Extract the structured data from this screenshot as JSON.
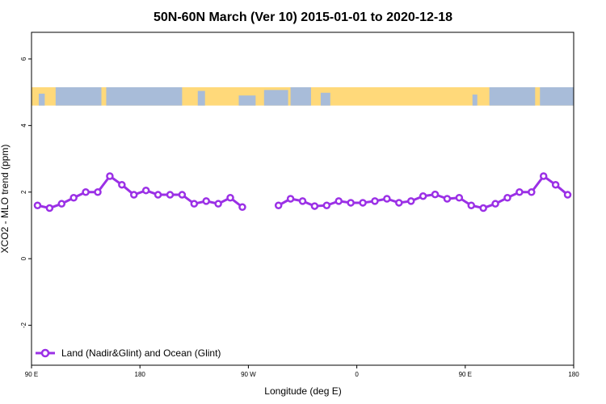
{
  "chart_data": {
    "type": "line",
    "title": "50N-60N March (Ver 10)   2015-01-01 to 2020-12-18",
    "xlabel": "Longitude (deg E)",
    "ylabel": "XCO2 - MLO trend (ppm)",
    "xlim": [
      90,
      540
    ],
    "ylim": [
      -3.2,
      6.8
    ],
    "x_ticks": [
      {
        "value": 90,
        "label": "90 E"
      },
      {
        "value": 180,
        "label": "180"
      },
      {
        "value": 270,
        "label": "90 W"
      },
      {
        "value": 360,
        "label": "0"
      },
      {
        "value": 450,
        "label": "90 E"
      },
      {
        "value": 540,
        "label": "180"
      }
    ],
    "y_ticks": [
      {
        "value": -2,
        "label": "-2"
      },
      {
        "value": 0,
        "label": "0"
      },
      {
        "value": 2,
        "label": "2"
      },
      {
        "value": 4,
        "label": "4"
      },
      {
        "value": 6,
        "label": "6"
      }
    ],
    "map_band": {
      "y_range": [
        4.6,
        5.15
      ],
      "land_color": "#ffd97a",
      "ocean_color": "#a8bcd9"
    },
    "legend": {
      "position": "bottom-left"
    },
    "series": [
      {
        "name": "Land (Nadir&Glint) and Ocean (Glint)",
        "color": "#9b30e6",
        "segments": [
          [
            {
              "x": 95,
              "y": 1.6
            },
            {
              "x": 105,
              "y": 1.52
            },
            {
              "x": 115,
              "y": 1.65
            },
            {
              "x": 125,
              "y": 1.83
            },
            {
              "x": 135,
              "y": 2.0
            },
            {
              "x": 145,
              "y": 2.0
            },
            {
              "x": 155,
              "y": 2.48
            },
            {
              "x": 165,
              "y": 2.22
            },
            {
              "x": 175,
              "y": 1.92
            },
            {
              "x": 185,
              "y": 2.05
            },
            {
              "x": 195,
              "y": 1.92
            },
            {
              "x": 205,
              "y": 1.92
            },
            {
              "x": 215,
              "y": 1.92
            },
            {
              "x": 225,
              "y": 1.65
            },
            {
              "x": 235,
              "y": 1.73
            },
            {
              "x": 245,
              "y": 1.65
            },
            {
              "x": 255,
              "y": 1.83
            },
            {
              "x": 265,
              "y": 1.55
            }
          ],
          [
            {
              "x": 295,
              "y": 1.6
            },
            {
              "x": 305,
              "y": 1.8
            },
            {
              "x": 315,
              "y": 1.73
            },
            {
              "x": 325,
              "y": 1.58
            },
            {
              "x": 335,
              "y": 1.6
            },
            {
              "x": 345,
              "y": 1.73
            },
            {
              "x": 355,
              "y": 1.68
            },
            {
              "x": 365,
              "y": 1.68
            },
            {
              "x": 375,
              "y": 1.73
            },
            {
              "x": 385,
              "y": 1.8
            },
            {
              "x": 395,
              "y": 1.68
            },
            {
              "x": 405,
              "y": 1.73
            },
            {
              "x": 415,
              "y": 1.88
            },
            {
              "x": 425,
              "y": 1.93
            },
            {
              "x": 435,
              "y": 1.8
            },
            {
              "x": 445,
              "y": 1.83
            },
            {
              "x": 455,
              "y": 1.6
            },
            {
              "x": 465,
              "y": 1.52
            },
            {
              "x": 475,
              "y": 1.65
            },
            {
              "x": 485,
              "y": 1.83
            },
            {
              "x": 495,
              "y": 2.0
            },
            {
              "x": 505,
              "y": 2.0
            },
            {
              "x": 515,
              "y": 2.48
            },
            {
              "x": 525,
              "y": 2.22
            },
            {
              "x": 535,
              "y": 1.92
            }
          ]
        ]
      }
    ]
  }
}
